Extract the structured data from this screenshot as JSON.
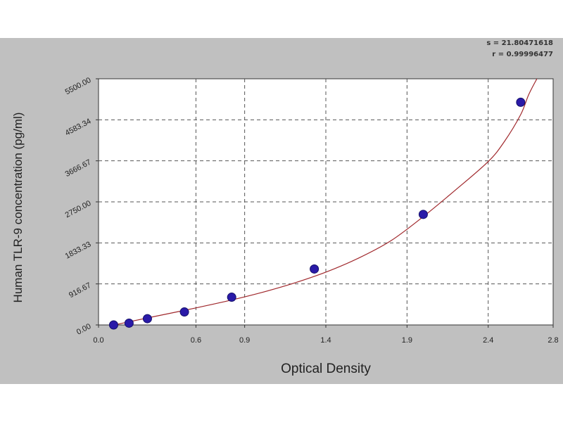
{
  "chart_data": {
    "type": "scatter",
    "title": "",
    "xlabel": "Optical Density",
    "ylabel": "Human TLR-9 concentration (pg/ml)",
    "xlim": [
      0,
      2.8
    ],
    "ylim": [
      0,
      5500
    ],
    "x_ticks": [
      0.0,
      0.6,
      0.9,
      1.4,
      1.9,
      2.4,
      2.8
    ],
    "x_tick_labels": [
      "0.0",
      "0.6",
      "0.9",
      "1.4",
      "1.9",
      "2.4",
      "2.8"
    ],
    "y_ticks": [
      0,
      916.67,
      1833.33,
      2750,
      3666.67,
      4583.34,
      5500
    ],
    "y_tick_labels": [
      "0.00",
      "916.67",
      "1833.33",
      "2750.00",
      "3666.67",
      "4583.34",
      "5500.00"
    ],
    "grid": true,
    "series": [
      {
        "type": "scatter",
        "color": "#2a1aa8",
        "x": [
          0.093,
          0.188,
          0.301,
          0.529,
          0.82,
          1.329,
          2.0,
          2.6
        ],
        "y": [
          0,
          40,
          140,
          290,
          620,
          1250,
          2470,
          4975
        ]
      },
      {
        "type": "line",
        "color": "#a0282c",
        "x": [
          0.05,
          0.2,
          0.4,
          0.6,
          0.8,
          1.0,
          1.2,
          1.4,
          1.6,
          1.8,
          2.0,
          2.2,
          2.4,
          2.5,
          2.6,
          2.65,
          2.7
        ],
        "y": [
          -40,
          80,
          230,
          380,
          540,
          720,
          930,
          1180,
          1490,
          1880,
          2420,
          3020,
          3650,
          4100,
          4700,
          5150,
          5500
        ]
      }
    ]
  },
  "stats": {
    "s": "s = 21.80471618",
    "r": "r = 0.99996477"
  }
}
